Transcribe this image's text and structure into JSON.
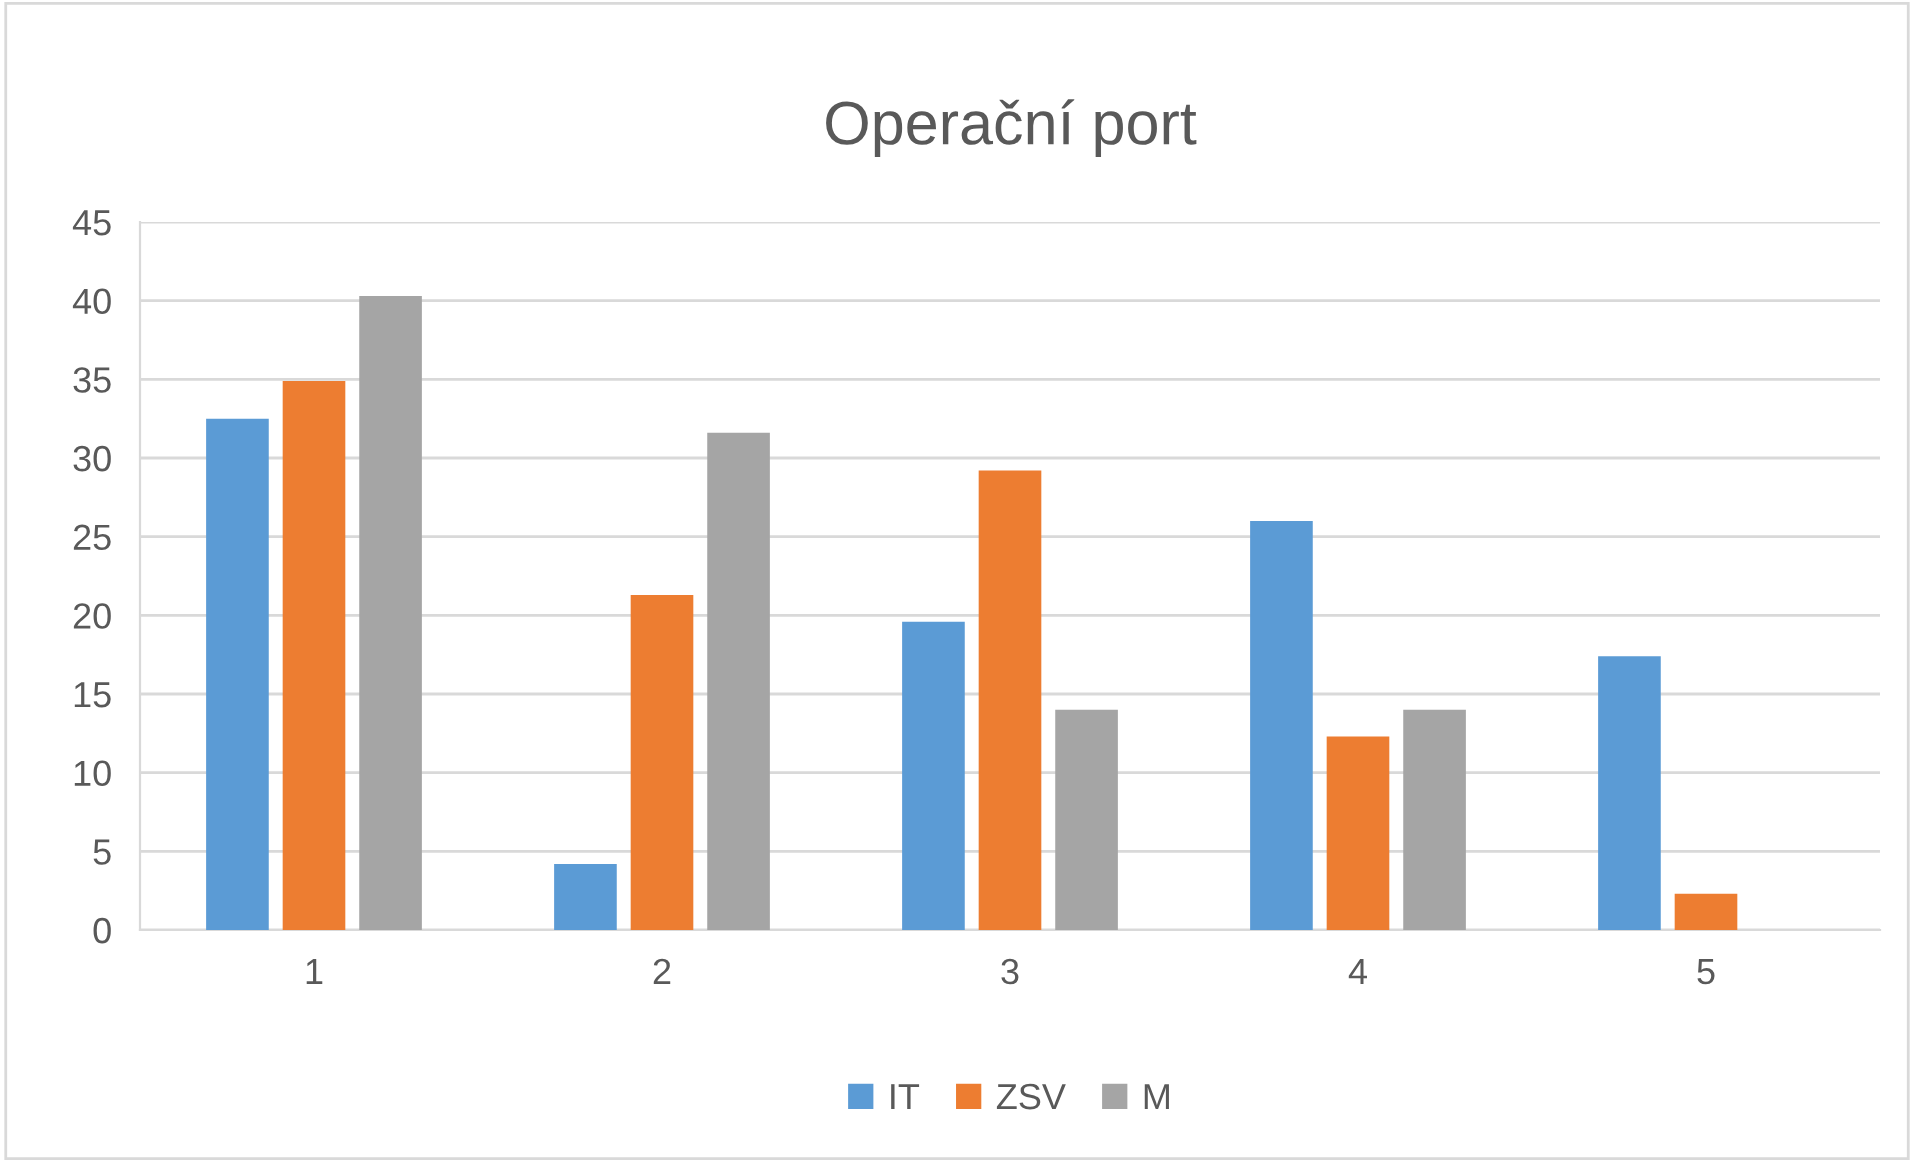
{
  "chart_data": {
    "type": "bar",
    "title": "Operační port",
    "categories": [
      "1",
      "2",
      "3",
      "4",
      "5"
    ],
    "series": [
      {
        "name": "IT",
        "color": "#5b9bd5",
        "values": [
          32.5,
          4.2,
          19.6,
          26.0,
          17.4
        ]
      },
      {
        "name": "ZSV",
        "color": "#ed7d31",
        "values": [
          34.9,
          21.3,
          29.2,
          12.3,
          2.3
        ]
      },
      {
        "name": "M",
        "color": "#a5a5a5",
        "values": [
          40.3,
          31.6,
          14.0,
          14.0,
          0
        ]
      }
    ],
    "ylim": [
      0,
      45
    ],
    "yticks": [
      0,
      5,
      10,
      15,
      20,
      25,
      30,
      35,
      40,
      45
    ],
    "grid": "y",
    "legend": "bottom"
  }
}
